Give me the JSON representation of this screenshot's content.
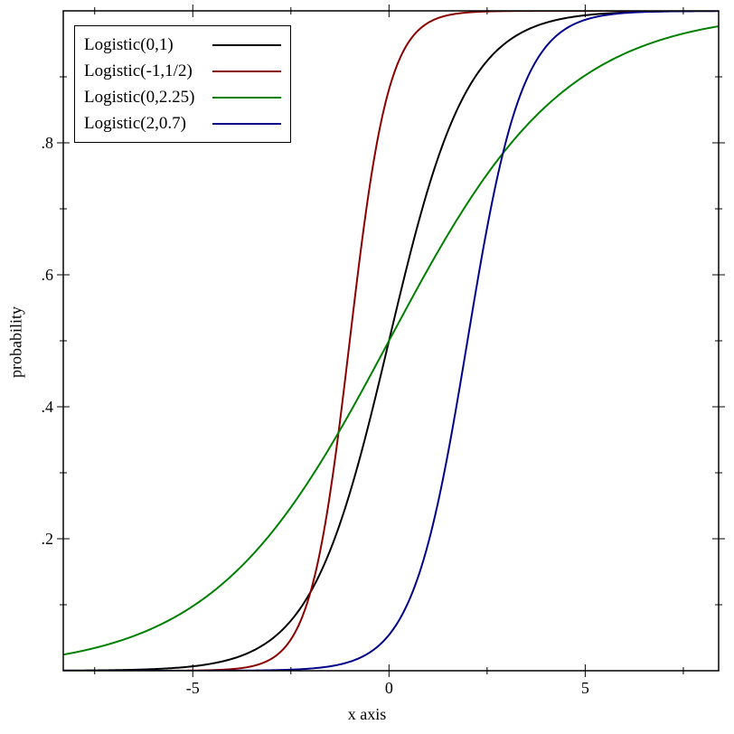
{
  "chart_data": {
    "type": "line",
    "title": "",
    "xlabel": "x axis",
    "ylabel": "probability",
    "curve": "logistic_cdf: y = 1/(1+exp(-(x-mu)/s))",
    "xlim": [
      -8.3,
      8.4
    ],
    "ylim": [
      0,
      1
    ],
    "grid": false,
    "legend_position": "top-left",
    "background": "#ffffff",
    "frame_color": "#000000",
    "x_major_ticks": [
      {
        "value": -5,
        "label": "-5"
      },
      {
        "value": 0,
        "label": "0"
      },
      {
        "value": 5,
        "label": "5"
      }
    ],
    "x_minor_ticks": [
      -7.5,
      -2.5,
      2.5,
      7.5
    ],
    "y_major_ticks": [
      {
        "value": 0.2,
        "label": ".2"
      },
      {
        "value": 0.4,
        "label": ".4"
      },
      {
        "value": 0.6,
        "label": ".6"
      },
      {
        "value": 0.8,
        "label": ".8"
      }
    ],
    "y_minor_ticks": [
      0.1,
      0.3,
      0.5,
      0.7,
      0.9
    ],
    "series": [
      {
        "name": "Logistic(0,1)",
        "mu": 0,
        "s": 1,
        "color": "#000000"
      },
      {
        "name": "Logistic(-1,1/2)",
        "mu": -1,
        "s": 0.5,
        "color": "#8b0000"
      },
      {
        "name": "Logistic(0,2.25)",
        "mu": 0,
        "s": 2.25,
        "color": "#008000"
      },
      {
        "name": "Logistic(2,0.7)",
        "mu": 2,
        "s": 0.7,
        "color": "#00008b"
      }
    ],
    "sample_points": {
      "x": [
        -8,
        -6,
        -4,
        -2,
        -1,
        0,
        1,
        2,
        4,
        6,
        8
      ],
      "Logistic(0,1)": [
        0.0,
        0.002,
        0.018,
        0.119,
        0.269,
        0.5,
        0.731,
        0.881,
        0.982,
        0.998,
        1.0
      ],
      "Logistic(-1,1/2)": [
        0.0,
        0.0,
        0.002,
        0.119,
        0.5,
        0.881,
        0.982,
        0.998,
        1.0,
        1.0,
        1.0
      ],
      "Logistic(0,2.25)": [
        0.028,
        0.065,
        0.145,
        0.289,
        0.391,
        0.5,
        0.609,
        0.711,
        0.855,
        0.935,
        0.972
      ],
      "Logistic(2,0.7)": [
        0.0,
        0.0,
        0.0,
        0.003,
        0.014,
        0.054,
        0.193,
        0.5,
        0.946,
        0.997,
        1.0
      ]
    }
  }
}
